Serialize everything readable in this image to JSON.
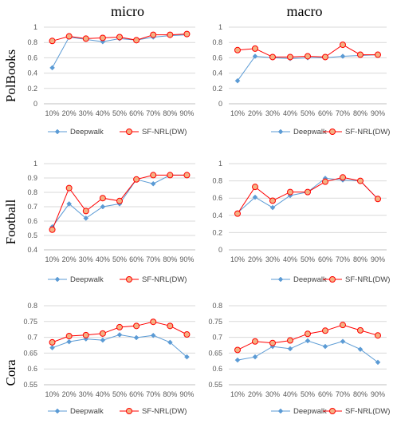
{
  "figure": {
    "column_titles": [
      "micro",
      "macro"
    ],
    "row_labels": [
      "PolBooks",
      "Football",
      "Cora"
    ],
    "colors": {
      "deepwalk": "#5B9BD5",
      "sfnrl": "#FF0000",
      "sfnrl_fill": "#F4B183",
      "grid": "#D9D9D9",
      "axis": "#BFBFBF"
    }
  },
  "chart_data": [
    {
      "type": "line",
      "row": "PolBooks",
      "metric": "micro",
      "categories": [
        "10%",
        "20%",
        "30%",
        "40%",
        "50%",
        "60%",
        "70%",
        "80%",
        "90%"
      ],
      "ylim": [
        0,
        1
      ],
      "yticks": [
        0,
        0.2,
        0.4,
        0.6,
        0.8,
        1
      ],
      "grid": true,
      "legend": "bottom",
      "series": [
        {
          "name": "Deepwalk",
          "values": [
            0.47,
            0.87,
            0.84,
            0.81,
            0.85,
            0.83,
            0.87,
            0.89,
            0.9
          ]
        },
        {
          "name": "SF-NRL(DW)",
          "values": [
            0.82,
            0.88,
            0.85,
            0.86,
            0.87,
            0.83,
            0.9,
            0.9,
            0.91
          ]
        }
      ]
    },
    {
      "type": "line",
      "row": "PolBooks",
      "metric": "macro",
      "categories": [
        "10%",
        "20%",
        "30%",
        "40%",
        "50%",
        "60%",
        "70%",
        "80%",
        "90%"
      ],
      "ylim": [
        0,
        1
      ],
      "yticks": [
        0,
        0.2,
        0.4,
        0.6,
        0.8,
        1
      ],
      "grid": true,
      "legend": "bottom",
      "series": [
        {
          "name": "Deepwalk",
          "values": [
            0.3,
            0.62,
            0.6,
            0.59,
            0.6,
            0.6,
            0.62,
            0.63,
            0.64
          ]
        },
        {
          "name": "SF-NRL(DW)",
          "values": [
            0.7,
            0.72,
            0.61,
            0.61,
            0.62,
            0.61,
            0.77,
            0.64,
            0.64
          ]
        }
      ]
    },
    {
      "type": "line",
      "row": "Football",
      "metric": "micro",
      "categories": [
        "10%",
        "20%",
        "30%",
        "40%",
        "50%",
        "60%",
        "70%",
        "80%",
        "90%"
      ],
      "ylim": [
        0.4,
        1
      ],
      "yticks": [
        0.4,
        0.5,
        0.6,
        0.7,
        0.8,
        0.9,
        1
      ],
      "grid": true,
      "legend": "bottom",
      "series": [
        {
          "name": "Deepwalk",
          "values": [
            0.56,
            0.72,
            0.62,
            0.7,
            0.72,
            0.89,
            0.86,
            0.92,
            0.92
          ]
        },
        {
          "name": "SF-NRL(DW)",
          "values": [
            0.54,
            0.83,
            0.67,
            0.76,
            0.74,
            0.89,
            0.92,
            0.92,
            0.92
          ]
        }
      ]
    },
    {
      "type": "line",
      "row": "Football",
      "metric": "macro",
      "categories": [
        "10%",
        "20%",
        "30%",
        "40%",
        "50%",
        "60%",
        "70%",
        "80%",
        "90%"
      ],
      "ylim": [
        0,
        1
      ],
      "yticks": [
        0,
        0.2,
        0.4,
        0.6,
        0.8,
        1
      ],
      "grid": true,
      "legend": "bottom",
      "series": [
        {
          "name": "Deepwalk",
          "values": [
            0.43,
            0.61,
            0.49,
            0.63,
            0.67,
            0.83,
            0.81,
            0.8,
            0.59
          ]
        },
        {
          "name": "SF-NRL(DW)",
          "values": [
            0.42,
            0.73,
            0.57,
            0.67,
            0.67,
            0.79,
            0.84,
            0.8,
            0.59
          ]
        }
      ]
    },
    {
      "type": "line",
      "row": "Cora",
      "metric": "micro",
      "categories": [
        "10%",
        "20%",
        "30%",
        "40%",
        "50%",
        "60%",
        "70%",
        "80%",
        "90%"
      ],
      "ylim": [
        0.55,
        0.8
      ],
      "yticks": [
        0.55,
        0.6,
        0.65,
        0.7,
        0.75,
        0.8
      ],
      "grid": true,
      "legend": "bottom",
      "series": [
        {
          "name": "Deepwalk",
          "values": [
            0.667,
            0.686,
            0.695,
            0.691,
            0.708,
            0.699,
            0.706,
            0.684,
            0.638
          ]
        },
        {
          "name": "SF-NRL(DW)",
          "values": [
            0.684,
            0.704,
            0.707,
            0.712,
            0.732,
            0.736,
            0.749,
            0.736,
            0.709
          ]
        }
      ]
    },
    {
      "type": "line",
      "row": "Cora",
      "metric": "macro",
      "categories": [
        "10%",
        "20%",
        "30%",
        "40%",
        "50%",
        "60%",
        "70%",
        "80%",
        "90%"
      ],
      "ylim": [
        0.55,
        0.8
      ],
      "yticks": [
        0.55,
        0.6,
        0.65,
        0.7,
        0.75,
        0.8
      ],
      "grid": true,
      "legend": "bottom",
      "series": [
        {
          "name": "Deepwalk",
          "values": [
            0.628,
            0.638,
            0.671,
            0.664,
            0.689,
            0.671,
            0.687,
            0.662,
            0.621
          ]
        },
        {
          "name": "SF-NRL(DW)",
          "values": [
            0.66,
            0.687,
            0.682,
            0.69,
            0.711,
            0.721,
            0.739,
            0.722,
            0.706
          ]
        }
      ]
    }
  ]
}
